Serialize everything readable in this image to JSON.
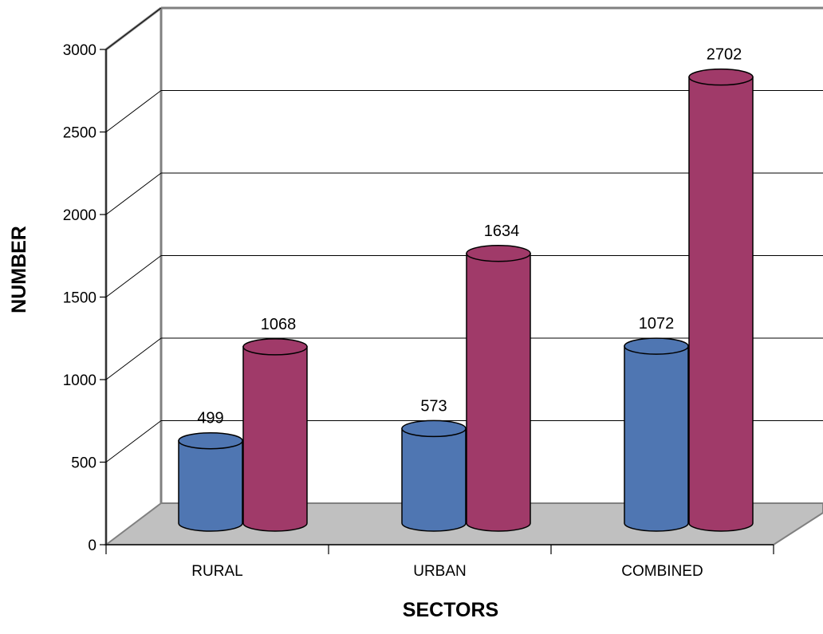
{
  "chart_data": {
    "type": "bar",
    "style": "3d-cylinder",
    "categories": [
      "RURAL",
      "URBAN",
      "COMBINED"
    ],
    "series": [
      {
        "values": [
          499,
          573,
          1072
        ],
        "color": "#4f76b2"
      },
      {
        "values": [
          1068,
          1634,
          2702
        ],
        "color": "#a03a69"
      }
    ],
    "title": "",
    "xlabel": "SECTORS",
    "ylabel": "NUMBER",
    "ylim": [
      0,
      3000
    ],
    "yticks": [
      "0",
      "500",
      "1000",
      "1500",
      "2000",
      "2500",
      "3000"
    ],
    "grid": true,
    "floor_color": "#c0c0c0",
    "legend": "none"
  }
}
